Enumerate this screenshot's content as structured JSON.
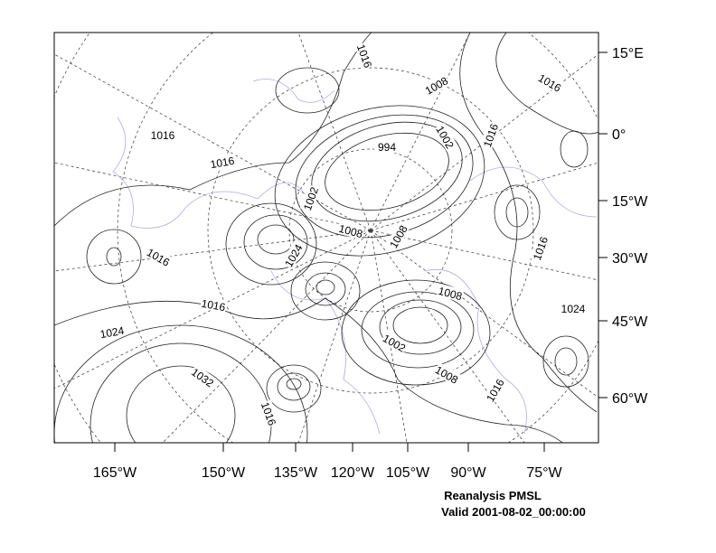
{
  "map": {
    "x_labels": [
      "165°W",
      "150°W",
      "135°W",
      "120°W",
      "105°W",
      "90°W",
      "75°W"
    ],
    "y_labels": [
      "15°E",
      "0°",
      "15°W",
      "30°W",
      "45°W",
      "60°W"
    ],
    "contour_labels": [
      1016,
      1008,
      1016,
      1016,
      1016,
      994,
      1002,
      1016,
      1002,
      1008,
      1008,
      1024,
      1016,
      1016,
      1008,
      1016,
      1024,
      1024,
      1002,
      1008,
      1032,
      1016,
      1016
    ],
    "caption": {
      "title": "Reanalysis PMSL",
      "subtitle": "Valid 2001-08-02_00:00:00"
    }
  }
}
